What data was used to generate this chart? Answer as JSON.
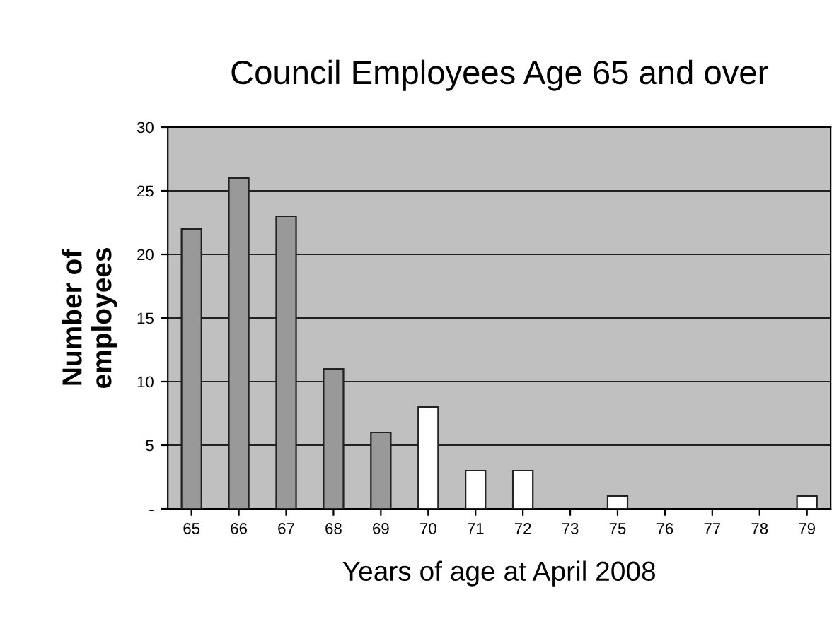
{
  "chart_data": {
    "type": "bar",
    "title": "Council Employees Age 65 and over",
    "xlabel": "Years of age at April 2008",
    "ylabel": "Number of\nemployees",
    "categories": [
      "65",
      "66",
      "67",
      "68",
      "69",
      "70",
      "71",
      "72",
      "73",
      "75",
      "76",
      "77",
      "78",
      "79"
    ],
    "values": [
      22,
      26,
      23,
      11,
      6,
      8,
      3,
      3,
      0,
      1,
      0,
      0,
      0,
      1
    ],
    "colors": [
      "#999999",
      "#999999",
      "#999999",
      "#999999",
      "#999999",
      "#ffffff",
      "#ffffff",
      "#ffffff",
      "#ffffff",
      "#ffffff",
      "#ffffff",
      "#ffffff",
      "#ffffff",
      "#ffffff"
    ],
    "ylim": [
      0,
      30
    ],
    "yticks": [
      {
        "value": 0,
        "label": "-"
      },
      5,
      10,
      15,
      20,
      25,
      30
    ],
    "grid": "y"
  }
}
